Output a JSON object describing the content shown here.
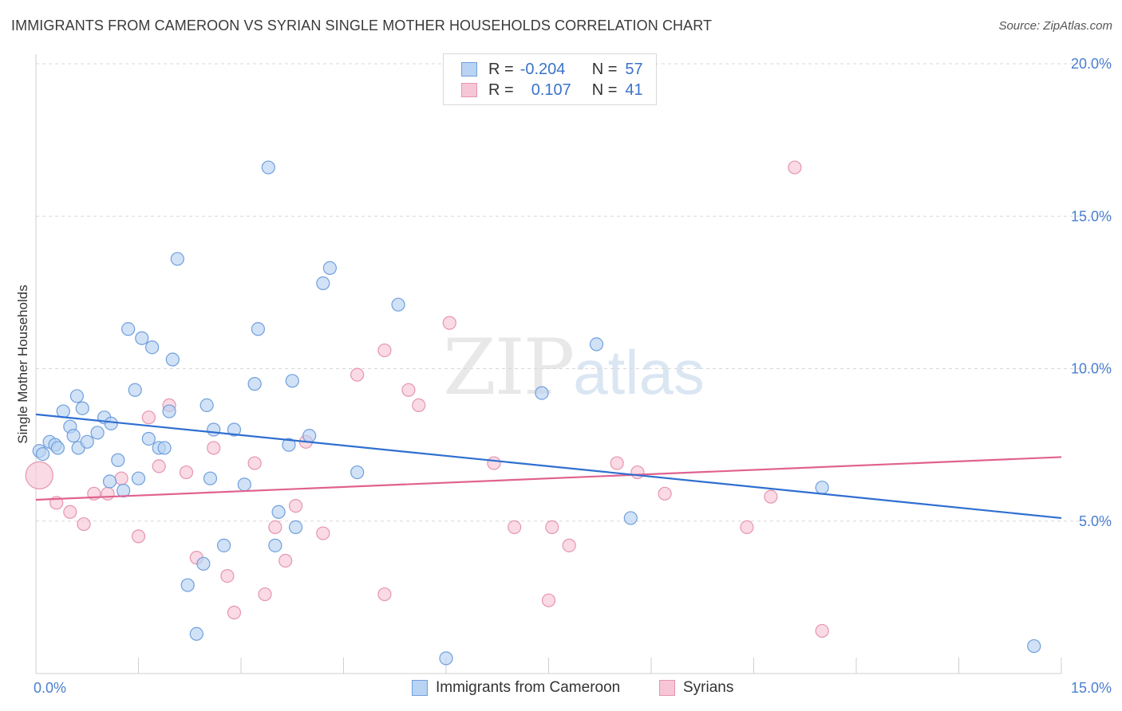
{
  "title": "IMMIGRANTS FROM CAMEROON VS SYRIAN SINGLE MOTHER HOUSEHOLDS CORRELATION CHART",
  "source": "Source: ZipAtlas.com",
  "watermark": {
    "zip": "ZIP",
    "atlas": "atlas"
  },
  "colors": {
    "blue_fill": "#b9d3f2",
    "blue_stroke": "#6f9fdc",
    "blue_line": "#2f6fd0",
    "pink_fill": "#f7c6d6",
    "pink_stroke": "#e595b2",
    "pink_line": "#e0628f",
    "grid": "#d8d8d8",
    "tick_text": "#4a7fd0"
  },
  "legend": {
    "rows": [
      {
        "r_label": "R =",
        "r_value": "-0.204",
        "n_label": "N =",
        "n_value": "57"
      },
      {
        "r_label": "R =",
        "r_value": "0.107",
        "n_label": "N =",
        "n_value": "41"
      }
    ]
  },
  "bottom_legend": [
    "Immigrants from Cameroon",
    "Syrians"
  ],
  "chart_data": {
    "type": "scatter",
    "title": "IMMIGRANTS FROM CAMEROON VS SYRIAN SINGLE MOTHER HOUSEHOLDS CORRELATION CHART",
    "xlabel": "",
    "ylabel": "Single Mother Households",
    "xlim": [
      0,
      15
    ],
    "ylim": [
      0,
      20
    ],
    "x_ticks": [
      "0.0%",
      "15.0%"
    ],
    "y_ticks": [
      {
        "value": 5,
        "label": "5.0%"
      },
      {
        "value": 10,
        "label": "10.0%"
      },
      {
        "value": 15,
        "label": "15.0%"
      },
      {
        "value": 20,
        "label": "20.0%"
      }
    ],
    "grid": true,
    "legend_position": "top-center",
    "series": [
      {
        "name": "Immigrants from Cameroon",
        "r": -0.204,
        "n": 57,
        "trend": [
          [
            0,
            8.5
          ],
          [
            15,
            5.1
          ]
        ],
        "points": [
          [
            0.05,
            7.3
          ],
          [
            0.1,
            7.2
          ],
          [
            0.2,
            7.6
          ],
          [
            0.28,
            7.5
          ],
          [
            0.32,
            7.4
          ],
          [
            0.4,
            8.6
          ],
          [
            0.5,
            8.1
          ],
          [
            0.55,
            7.8
          ],
          [
            0.6,
            9.1
          ],
          [
            0.62,
            7.4
          ],
          [
            0.68,
            8.7
          ],
          [
            0.75,
            7.6
          ],
          [
            0.9,
            7.9
          ],
          [
            1.0,
            8.4
          ],
          [
            1.1,
            8.2
          ],
          [
            1.08,
            6.3
          ],
          [
            1.2,
            7.0
          ],
          [
            1.28,
            6.0
          ],
          [
            1.35,
            11.3
          ],
          [
            1.45,
            9.3
          ],
          [
            1.5,
            6.4
          ],
          [
            1.55,
            11.0
          ],
          [
            1.65,
            7.7
          ],
          [
            1.7,
            10.7
          ],
          [
            1.8,
            7.4
          ],
          [
            1.88,
            7.4
          ],
          [
            1.95,
            8.6
          ],
          [
            2.0,
            10.3
          ],
          [
            2.07,
            13.6
          ],
          [
            2.22,
            2.9
          ],
          [
            2.35,
            1.3
          ],
          [
            2.45,
            3.6
          ],
          [
            2.5,
            8.8
          ],
          [
            2.55,
            6.4
          ],
          [
            2.6,
            8.0
          ],
          [
            2.75,
            4.2
          ],
          [
            2.9,
            8.0
          ],
          [
            3.05,
            6.2
          ],
          [
            3.2,
            9.5
          ],
          [
            3.25,
            11.3
          ],
          [
            3.4,
            16.6
          ],
          [
            3.5,
            4.2
          ],
          [
            3.55,
            5.3
          ],
          [
            3.7,
            7.5
          ],
          [
            3.75,
            9.6
          ],
          [
            3.8,
            4.8
          ],
          [
            4.0,
            7.8
          ],
          [
            4.2,
            12.8
          ],
          [
            4.3,
            13.3
          ],
          [
            4.7,
            6.6
          ],
          [
            5.3,
            12.1
          ],
          [
            6.0,
            0.5
          ],
          [
            7.4,
            9.2
          ],
          [
            8.2,
            10.8
          ],
          [
            8.7,
            5.1
          ],
          [
            11.5,
            6.1
          ],
          [
            14.6,
            0.9
          ]
        ]
      },
      {
        "name": "Syrians",
        "r": 0.107,
        "n": 41,
        "trend": [
          [
            0,
            5.7
          ],
          [
            15,
            7.1
          ]
        ],
        "points": [
          [
            0.05,
            6.5
          ],
          [
            0.3,
            5.6
          ],
          [
            0.5,
            5.3
          ],
          [
            0.7,
            4.9
          ],
          [
            0.85,
            5.9
          ],
          [
            1.05,
            5.9
          ],
          [
            1.25,
            6.4
          ],
          [
            1.5,
            4.5
          ],
          [
            1.65,
            8.4
          ],
          [
            1.8,
            6.8
          ],
          [
            1.95,
            8.8
          ],
          [
            2.2,
            6.6
          ],
          [
            2.35,
            3.8
          ],
          [
            2.6,
            7.4
          ],
          [
            2.8,
            3.2
          ],
          [
            2.9,
            2.0
          ],
          [
            3.2,
            6.9
          ],
          [
            3.35,
            2.6
          ],
          [
            3.5,
            4.8
          ],
          [
            3.65,
            3.7
          ],
          [
            3.8,
            5.5
          ],
          [
            3.95,
            7.6
          ],
          [
            4.2,
            4.6
          ],
          [
            4.7,
            9.8
          ],
          [
            5.1,
            10.6
          ],
          [
            5.1,
            2.6
          ],
          [
            5.45,
            9.3
          ],
          [
            5.6,
            8.8
          ],
          [
            6.05,
            11.5
          ],
          [
            6.7,
            6.9
          ],
          [
            7.0,
            4.8
          ],
          [
            7.5,
            2.4
          ],
          [
            7.55,
            4.8
          ],
          [
            7.8,
            4.2
          ],
          [
            8.5,
            6.9
          ],
          [
            8.8,
            6.6
          ],
          [
            9.2,
            5.9
          ],
          [
            10.4,
            4.8
          ],
          [
            10.75,
            5.8
          ],
          [
            11.1,
            16.6
          ],
          [
            11.5,
            1.4
          ]
        ]
      }
    ]
  }
}
